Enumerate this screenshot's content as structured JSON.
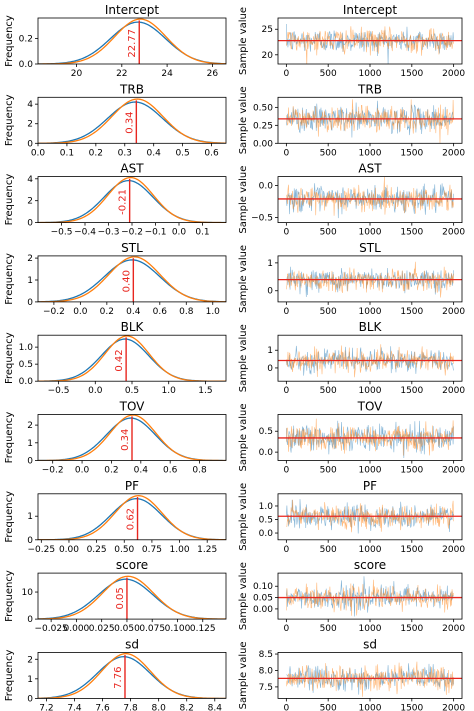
{
  "colors": {
    "chain1": "#1f77b4",
    "chain2": "#ff7f0e",
    "mean_line": "#e8261f"
  },
  "labels": {
    "density_ylabel": "Frequency",
    "trace_ylabel": "Sample value"
  },
  "chart_data": [
    {
      "name": "Intercept",
      "type": "line",
      "mean": 22.77,
      "mean_label": "22.77",
      "sd": 1.17,
      "xlim": [
        18.3,
        26.6
      ],
      "xticks": [
        20,
        22,
        24,
        26
      ],
      "ylim": [
        0,
        0.36
      ],
      "yticks": [
        0,
        0.2
      ],
      "trace_ylim": [
        18.2,
        27.2
      ],
      "trace_yticks": [
        20,
        25
      ],
      "trace_sd": 1.17,
      "xlabel": "",
      "ylabel": "Frequency"
    },
    {
      "name": "TRB",
      "type": "line",
      "mean": 0.34,
      "mean_label": "0.34",
      "sd": 0.091,
      "xlim": [
        0.0,
        0.65
      ],
      "xticks": [
        0.0,
        0.1,
        0.2,
        0.3,
        0.4,
        0.5,
        0.6
      ],
      "ylim": [
        0,
        4.7
      ],
      "yticks": [
        0,
        2,
        4
      ],
      "trace_ylim": [
        0.0,
        0.64
      ],
      "trace_yticks": [
        0.0,
        0.25,
        0.5
      ],
      "trace_sd": 0.09,
      "xlabel": "",
      "ylabel": "Frequency"
    },
    {
      "name": "AST",
      "type": "line",
      "mean": -0.21,
      "mean_label": "-0.21",
      "sd": 0.1,
      "xlim": [
        -0.6,
        0.2
      ],
      "xticks": [
        -0.5,
        -0.4,
        -0.3,
        -0.2,
        -0.1,
        0.0,
        0.1
      ],
      "ylim": [
        0,
        4.2
      ],
      "yticks": [
        0,
        2,
        4
      ],
      "trace_ylim": [
        -0.58,
        0.14
      ],
      "trace_yticks": [
        -0.5,
        0.0
      ],
      "trace_sd": 0.1,
      "xlabel": "",
      "ylabel": "Frequency"
    },
    {
      "name": "STL",
      "type": "line",
      "mean": 0.4,
      "mean_label": "0.40",
      "sd": 0.2,
      "xlim": [
        -0.32,
        1.1
      ],
      "xticks": [
        -0.2,
        0.0,
        0.2,
        0.4,
        0.6,
        0.8,
        1.0
      ],
      "ylim": [
        0,
        2.1
      ],
      "yticks": [
        0,
        1,
        2
      ],
      "trace_ylim": [
        -0.4,
        1.25
      ],
      "trace_yticks": [
        0,
        1
      ],
      "trace_sd": 0.2,
      "xlabel": "",
      "ylabel": "Frequency"
    },
    {
      "name": "BLK",
      "type": "line",
      "mean": 0.42,
      "mean_label": "0.42",
      "sd": 0.31,
      "xlim": [
        -0.78,
        1.78
      ],
      "xticks": [
        -0.5,
        0.0,
        0.5,
        1.0,
        1.5
      ],
      "ylim": [
        0,
        1.35
      ],
      "yticks": [
        0,
        0.5,
        1.0
      ],
      "trace_ylim": [
        -0.75,
        1.85
      ],
      "trace_yticks": [
        0,
        1
      ],
      "trace_sd": 0.32,
      "xlabel": "",
      "ylabel": "Frequency"
    },
    {
      "name": "TOV",
      "type": "line",
      "mean": 0.34,
      "mean_label": "0.34",
      "sd": 0.16,
      "xlim": [
        -0.3,
        0.98
      ],
      "xticks": [
        -0.2,
        0.0,
        0.2,
        0.4,
        0.6,
        0.8
      ],
      "ylim": [
        0,
        2.6
      ],
      "yticks": [
        0,
        1,
        2
      ],
      "trace_ylim": [
        -0.2,
        0.9
      ],
      "trace_yticks": [
        0.0,
        0.5
      ],
      "trace_sd": 0.16,
      "xlabel": "",
      "ylabel": "Frequency"
    },
    {
      "name": "PF",
      "type": "line",
      "mean": 0.62,
      "mean_label": "0.62",
      "sd": 0.22,
      "xlim": [
        -0.28,
        1.42
      ],
      "xticks": [
        -0.25,
        0.0,
        0.25,
        0.5,
        0.75,
        1.0,
        1.25
      ],
      "ylim": [
        0,
        1.95
      ],
      "yticks": [
        0,
        1
      ],
      "trace_ylim": [
        -0.25,
        1.45
      ],
      "trace_yticks": [
        0.0,
        0.5,
        1.0
      ],
      "trace_sd": 0.22,
      "xlabel": "",
      "ylabel": "Frequency"
    },
    {
      "name": "score",
      "type": "line",
      "mean": 0.05,
      "mean_label": "0.05",
      "sd": 0.026,
      "xlim": [
        -0.038,
        0.148
      ],
      "xticks": [
        -0.025,
        0.0,
        0.025,
        0.05,
        0.075,
        0.1,
        0.125
      ],
      "ylim": [
        0,
        17
      ],
      "yticks": [
        0,
        10
      ],
      "trace_ylim": [
        -0.045,
        0.158
      ],
      "trace_yticks": [
        0.0,
        0.05,
        0.1
      ],
      "trace_sd": 0.026,
      "xlabel": "",
      "ylabel": "Frequency"
    },
    {
      "name": "sd",
      "type": "line",
      "mean": 7.76,
      "mean_label": "7.76",
      "sd": 0.18,
      "xlim": [
        7.14,
        8.48
      ],
      "xticks": [
        7.2,
        7.4,
        7.6,
        7.8,
        8.0,
        8.2,
        8.4
      ],
      "ylim": [
        0,
        2.35
      ],
      "yticks": [
        0,
        1,
        2
      ],
      "trace_ylim": [
        7.15,
        8.55
      ],
      "trace_yticks": [
        7.5,
        8.0,
        8.5
      ],
      "trace_sd": 0.18,
      "xlabel": "",
      "ylabel": "Frequency"
    }
  ],
  "trace_x": {
    "xlim": [
      -100,
      2100
    ],
    "xticks": [
      0,
      500,
      1000,
      1500,
      2000
    ],
    "n": 2000
  }
}
